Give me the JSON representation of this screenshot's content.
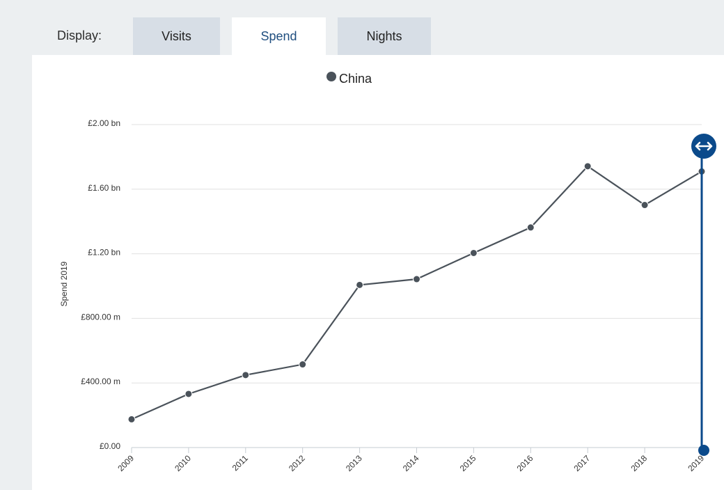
{
  "controls": {
    "display_label": "Display:",
    "tabs": [
      {
        "label": "Visits",
        "active": false
      },
      {
        "label": "Spend",
        "active": true
      },
      {
        "label": "Nights",
        "active": false
      }
    ]
  },
  "colors": {
    "series": "#4a525a",
    "handle": "#0b4a8b",
    "grid": "#e0e0e0",
    "tab_active_text": "#1f4e7f"
  },
  "chart_data": {
    "type": "line",
    "ylabel": "Spend 2019",
    "ylim": [
      0,
      2000000000
    ],
    "y_ticks": [
      {
        "value": 0,
        "label": "£0.00"
      },
      {
        "value": 400000000,
        "label": "£400.00 m"
      },
      {
        "value": 800000000,
        "label": "£800.00 m"
      },
      {
        "value": 1200000000,
        "label": "£1.20 bn"
      },
      {
        "value": 1600000000,
        "label": "£1.60 bn"
      },
      {
        "value": 2000000000,
        "label": "£2.00 bn"
      }
    ],
    "categories": [
      "2009",
      "2010",
      "2011",
      "2012",
      "2013",
      "2014",
      "2015",
      "2016",
      "2017",
      "2018",
      "2019"
    ],
    "series": [
      {
        "name": "China",
        "values": [
          175000000,
          332000000,
          449000000,
          515000000,
          1007000000,
          1043000000,
          1205000000,
          1363000000,
          1742000000,
          1502000000,
          1710000000
        ]
      }
    ],
    "legend": "top-center",
    "grid": true,
    "range_handle": {
      "selected": "2019",
      "icon": "double-arrow-icon"
    }
  }
}
